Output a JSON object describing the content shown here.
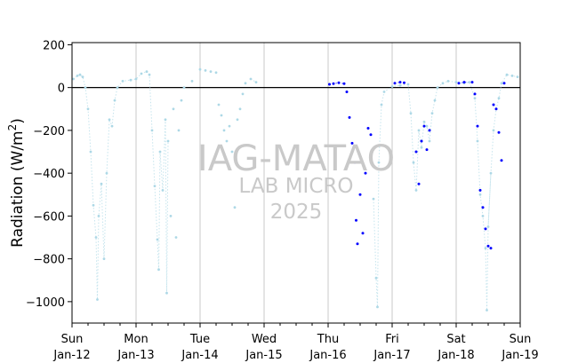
{
  "chart_data": {
    "type": "scatter",
    "title": "",
    "xlabel": "",
    "ylabel": "Radiation (W/m²)",
    "ylabel_base": "Radiation (W/m",
    "ylabel_sup": "2",
    "ylabel_close": ")",
    "ylim": [
      -1100,
      210
    ],
    "yticks": [
      200,
      0,
      -200,
      -400,
      -600,
      -800,
      -1000
    ],
    "ytick_labels": [
      "200",
      "0",
      "−200",
      "−400",
      "−600",
      "−800",
      "−1000"
    ],
    "xlim": [
      "2025-01-12",
      "2025-01-19"
    ],
    "xticks": [
      {
        "day": "Sun",
        "date": "Jan-12"
      },
      {
        "day": "Mon",
        "date": "Jan-13"
      },
      {
        "day": "Tue",
        "date": "Jan-14"
      },
      {
        "day": "Wed",
        "date": "Jan-15"
      },
      {
        "day": "Thu",
        "date": "Jan-16"
      },
      {
        "day": "Fri",
        "date": "Jan-17"
      },
      {
        "day": "Sat",
        "date": "Jan-18"
      },
      {
        "day": "Sun",
        "date": "Jan-19"
      }
    ],
    "vertical_gridlines": true,
    "zero_line": true,
    "series": [
      {
        "color": "#add8e6",
        "segments": [
          {
            "start": "2025-01-12T00:00",
            "end": "2025-01-13T12:00"
          },
          {
            "start": "2025-01-14T18:00",
            "end": "2025-01-15T00:00"
          },
          {
            "start": "2025-01-16T17:00",
            "end": "2025-01-18T13:00"
          },
          {
            "start": "2025-01-18T12:00",
            "end": "2025-01-19T00:00"
          }
        ],
        "points": [
          {
            "x": "2025-01-12T00:30",
            "y": 40
          },
          {
            "x": "2025-01-12T02:00",
            "y": 55
          },
          {
            "x": "2025-01-12T03:00",
            "y": 60
          },
          {
            "x": "2025-01-12T04:00",
            "y": 50
          },
          {
            "x": "2025-01-12T05:00",
            "y": 0
          },
          {
            "x": "2025-01-12T06:00",
            "y": -100
          },
          {
            "x": "2025-01-12T07:00",
            "y": -300
          },
          {
            "x": "2025-01-12T08:00",
            "y": -550
          },
          {
            "x": "2025-01-12T09:00",
            "y": -700
          },
          {
            "x": "2025-01-12T09:30",
            "y": -990
          },
          {
            "x": "2025-01-12T10:00",
            "y": -600
          },
          {
            "x": "2025-01-12T11:00",
            "y": -450
          },
          {
            "x": "2025-01-12T12:00",
            "y": -800
          },
          {
            "x": "2025-01-12T13:00",
            "y": -400
          },
          {
            "x": "2025-01-12T14:00",
            "y": -150
          },
          {
            "x": "2025-01-12T15:00",
            "y": -180
          },
          {
            "x": "2025-01-12T16:00",
            "y": -60
          },
          {
            "x": "2025-01-12T17:00",
            "y": 0
          },
          {
            "x": "2025-01-12T19:00",
            "y": 30
          },
          {
            "x": "2025-01-12T22:00",
            "y": 35
          },
          {
            "x": "2025-01-13T00:00",
            "y": 40
          },
          {
            "x": "2025-01-13T02:00",
            "y": 65
          },
          {
            "x": "2025-01-13T04:00",
            "y": 75
          },
          {
            "x": "2025-01-13T05:00",
            "y": 60
          },
          {
            "x": "2025-01-13T06:00",
            "y": -200
          },
          {
            "x": "2025-01-13T07:00",
            "y": -460
          },
          {
            "x": "2025-01-13T08:00",
            "y": -710
          },
          {
            "x": "2025-01-13T08:30",
            "y": -850
          },
          {
            "x": "2025-01-13T09:00",
            "y": -300
          },
          {
            "x": "2025-01-13T10:00",
            "y": -480
          },
          {
            "x": "2025-01-13T11:00",
            "y": -150
          },
          {
            "x": "2025-01-13T11:30",
            "y": -960
          },
          {
            "x": "2025-01-13T12:00",
            "y": -250
          },
          {
            "x": "2025-01-13T13:00",
            "y": -600
          },
          {
            "x": "2025-01-13T14:00",
            "y": -100
          },
          {
            "x": "2025-01-13T15:00",
            "y": -700
          },
          {
            "x": "2025-01-13T16:00",
            "y": -200
          },
          {
            "x": "2025-01-13T17:00",
            "y": -60
          },
          {
            "x": "2025-01-13T18:00",
            "y": 0
          },
          {
            "x": "2025-01-13T21:00",
            "y": 30
          },
          {
            "x": "2025-01-14T00:00",
            "y": 85
          },
          {
            "x": "2025-01-14T02:00",
            "y": 80
          },
          {
            "x": "2025-01-14T04:00",
            "y": 75
          },
          {
            "x": "2025-01-14T06:00",
            "y": 70
          },
          {
            "x": "2025-01-14T07:00",
            "y": -80
          },
          {
            "x": "2025-01-14T08:00",
            "y": -130
          },
          {
            "x": "2025-01-14T09:00",
            "y": -200
          },
          {
            "x": "2025-01-14T10:00",
            "y": -250
          },
          {
            "x": "2025-01-14T11:00",
            "y": -180
          },
          {
            "x": "2025-01-14T12:00",
            "y": -300
          },
          {
            "x": "2025-01-14T13:00",
            "y": -560
          },
          {
            "x": "2025-01-14T14:00",
            "y": -150
          },
          {
            "x": "2025-01-14T15:00",
            "y": -100
          },
          {
            "x": "2025-01-14T16:00",
            "y": -30
          },
          {
            "x": "2025-01-14T17:00",
            "y": 20
          },
          {
            "x": "2025-01-14T19:00",
            "y": 40
          },
          {
            "x": "2025-01-14T21:00",
            "y": 25
          },
          {
            "x": "2025-01-16T17:00",
            "y": -520
          },
          {
            "x": "2025-01-16T18:00",
            "y": -890
          },
          {
            "x": "2025-01-16T18:30",
            "y": -1025
          },
          {
            "x": "2025-01-16T19:00",
            "y": -350
          },
          {
            "x": "2025-01-16T20:00",
            "y": -80
          },
          {
            "x": "2025-01-16T21:00",
            "y": -20
          },
          {
            "x": "2025-01-17T00:00",
            "y": 5
          },
          {
            "x": "2025-01-17T03:00",
            "y": 10
          },
          {
            "x": "2025-01-17T06:00",
            "y": 15
          },
          {
            "x": "2025-01-17T07:00",
            "y": -120
          },
          {
            "x": "2025-01-17T08:00",
            "y": -350
          },
          {
            "x": "2025-01-17T09:00",
            "y": -480
          },
          {
            "x": "2025-01-17T10:00",
            "y": -200
          },
          {
            "x": "2025-01-17T11:00",
            "y": -280
          },
          {
            "x": "2025-01-17T12:00",
            "y": -160
          },
          {
            "x": "2025-01-17T13:00",
            "y": -180
          },
          {
            "x": "2025-01-17T14:00",
            "y": -250
          },
          {
            "x": "2025-01-17T15:00",
            "y": -120
          },
          {
            "x": "2025-01-17T16:00",
            "y": -60
          },
          {
            "x": "2025-01-17T17:00",
            "y": 0
          },
          {
            "x": "2025-01-17T19:00",
            "y": 20
          },
          {
            "x": "2025-01-17T21:00",
            "y": 30
          },
          {
            "x": "2025-01-18T00:00",
            "y": 25
          },
          {
            "x": "2025-01-18T03:00",
            "y": 20
          },
          {
            "x": "2025-01-18T05:00",
            "y": 25
          },
          {
            "x": "2025-01-18T07:00",
            "y": -50
          },
          {
            "x": "2025-01-18T08:00",
            "y": -250
          },
          {
            "x": "2025-01-18T09:00",
            "y": -500
          },
          {
            "x": "2025-01-18T10:00",
            "y": -600
          },
          {
            "x": "2025-01-18T11:00",
            "y": -750
          },
          {
            "x": "2025-01-18T11:30",
            "y": -1040
          },
          {
            "x": "2025-01-18T12:00",
            "y": -650
          },
          {
            "x": "2025-01-18T13:00",
            "y": -400
          },
          {
            "x": "2025-01-18T14:00",
            "y": -200
          },
          {
            "x": "2025-01-18T15:00",
            "y": -100
          },
          {
            "x": "2025-01-18T16:00",
            "y": -50
          },
          {
            "x": "2025-01-18T17:00",
            "y": 20
          },
          {
            "x": "2025-01-18T19:00",
            "y": 60
          },
          {
            "x": "2025-01-18T21:00",
            "y": 55
          },
          {
            "x": "2025-01-18T23:00",
            "y": 50
          }
        ]
      },
      {
        "color": "#0000ff",
        "segments": [
          {
            "start": "2025-01-16T00:00",
            "end": "2025-01-16T06:00"
          },
          {
            "start": "2025-01-17T00:00",
            "end": "2025-01-17T04:00"
          },
          {
            "start": "2025-01-18T00:00",
            "end": "2025-01-18T06:00"
          }
        ],
        "points": [
          {
            "x": "2025-01-16T00:30",
            "y": 15
          },
          {
            "x": "2025-01-16T02:00",
            "y": 18
          },
          {
            "x": "2025-01-16T04:00",
            "y": 22
          },
          {
            "x": "2025-01-16T06:00",
            "y": 18
          },
          {
            "x": "2025-01-16T07:00",
            "y": -20
          },
          {
            "x": "2025-01-16T08:00",
            "y": -140
          },
          {
            "x": "2025-01-16T09:00",
            "y": -260
          },
          {
            "x": "2025-01-16T10:00",
            "y": -350
          },
          {
            "x": "2025-01-16T10:30",
            "y": -620
          },
          {
            "x": "2025-01-16T11:00",
            "y": -730
          },
          {
            "x": "2025-01-16T12:00",
            "y": -500
          },
          {
            "x": "2025-01-16T13:00",
            "y": -680
          },
          {
            "x": "2025-01-16T14:00",
            "y": -400
          },
          {
            "x": "2025-01-16T15:00",
            "y": -190
          },
          {
            "x": "2025-01-16T16:00",
            "y": -220
          },
          {
            "x": "2025-01-17T01:00",
            "y": 20
          },
          {
            "x": "2025-01-17T03:00",
            "y": 25
          },
          {
            "x": "2025-01-17T04:30",
            "y": 22
          },
          {
            "x": "2025-01-17T09:00",
            "y": -300
          },
          {
            "x": "2025-01-17T10:00",
            "y": -450
          },
          {
            "x": "2025-01-17T11:00",
            "y": -250
          },
          {
            "x": "2025-01-17T12:00",
            "y": -180
          },
          {
            "x": "2025-01-17T13:00",
            "y": -290
          },
          {
            "x": "2025-01-17T14:00",
            "y": -200
          },
          {
            "x": "2025-01-18T01:00",
            "y": 20
          },
          {
            "x": "2025-01-18T03:00",
            "y": 25
          },
          {
            "x": "2025-01-18T06:00",
            "y": 25
          },
          {
            "x": "2025-01-18T07:00",
            "y": -30
          },
          {
            "x": "2025-01-18T08:00",
            "y": -180
          },
          {
            "x": "2025-01-18T09:00",
            "y": -480
          },
          {
            "x": "2025-01-18T10:00",
            "y": -560
          },
          {
            "x": "2025-01-18T11:00",
            "y": -660
          },
          {
            "x": "2025-01-18T12:00",
            "y": -740
          },
          {
            "x": "2025-01-18T13:00",
            "y": -750
          },
          {
            "x": "2025-01-18T14:00",
            "y": -80
          },
          {
            "x": "2025-01-18T15:00",
            "y": -100
          },
          {
            "x": "2025-01-18T16:00",
            "y": -210
          },
          {
            "x": "2025-01-18T17:00",
            "y": -340
          },
          {
            "x": "2025-01-18T18:00",
            "y": 20
          }
        ]
      }
    ]
  },
  "watermark": {
    "line1": "IAG-MATAO",
    "line2": "LAB MICRO",
    "line3": "2025"
  }
}
